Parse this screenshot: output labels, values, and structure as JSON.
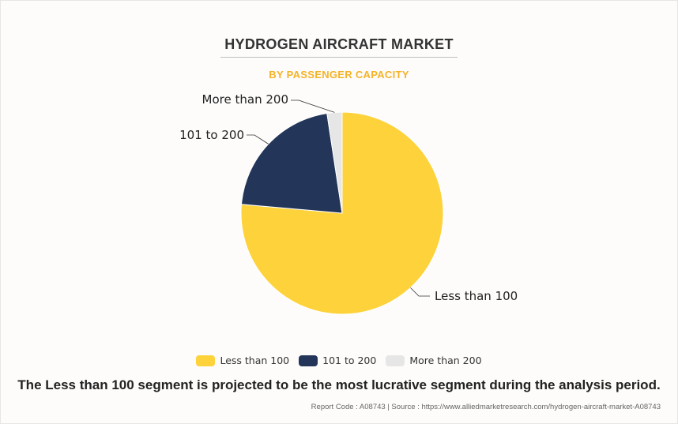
{
  "header": {
    "title": "HYDROGEN AIRCRAFT MARKET",
    "subtitle": "BY PASSENGER CAPACITY"
  },
  "chart_data": {
    "type": "pie",
    "title": "HYDROGEN AIRCRAFT MARKET",
    "subtitle": "BY PASSENGER CAPACITY",
    "categories": [
      "Less than 100",
      "101 to 200",
      "More than 200"
    ],
    "values": [
      76.4,
      21.2,
      2.4
    ],
    "colors": [
      "#fdd23b",
      "#233659",
      "#e6e6e6"
    ],
    "legend_placement": "bottom"
  },
  "footer": {
    "statement": "The Less than 100 segment is projected to be the most lucrative segment during the analysis period.",
    "source": "Report Code : A08743  |  Source : https://www.alliedmarketresearch.com/hydrogen-aircraft-market-A08743"
  }
}
